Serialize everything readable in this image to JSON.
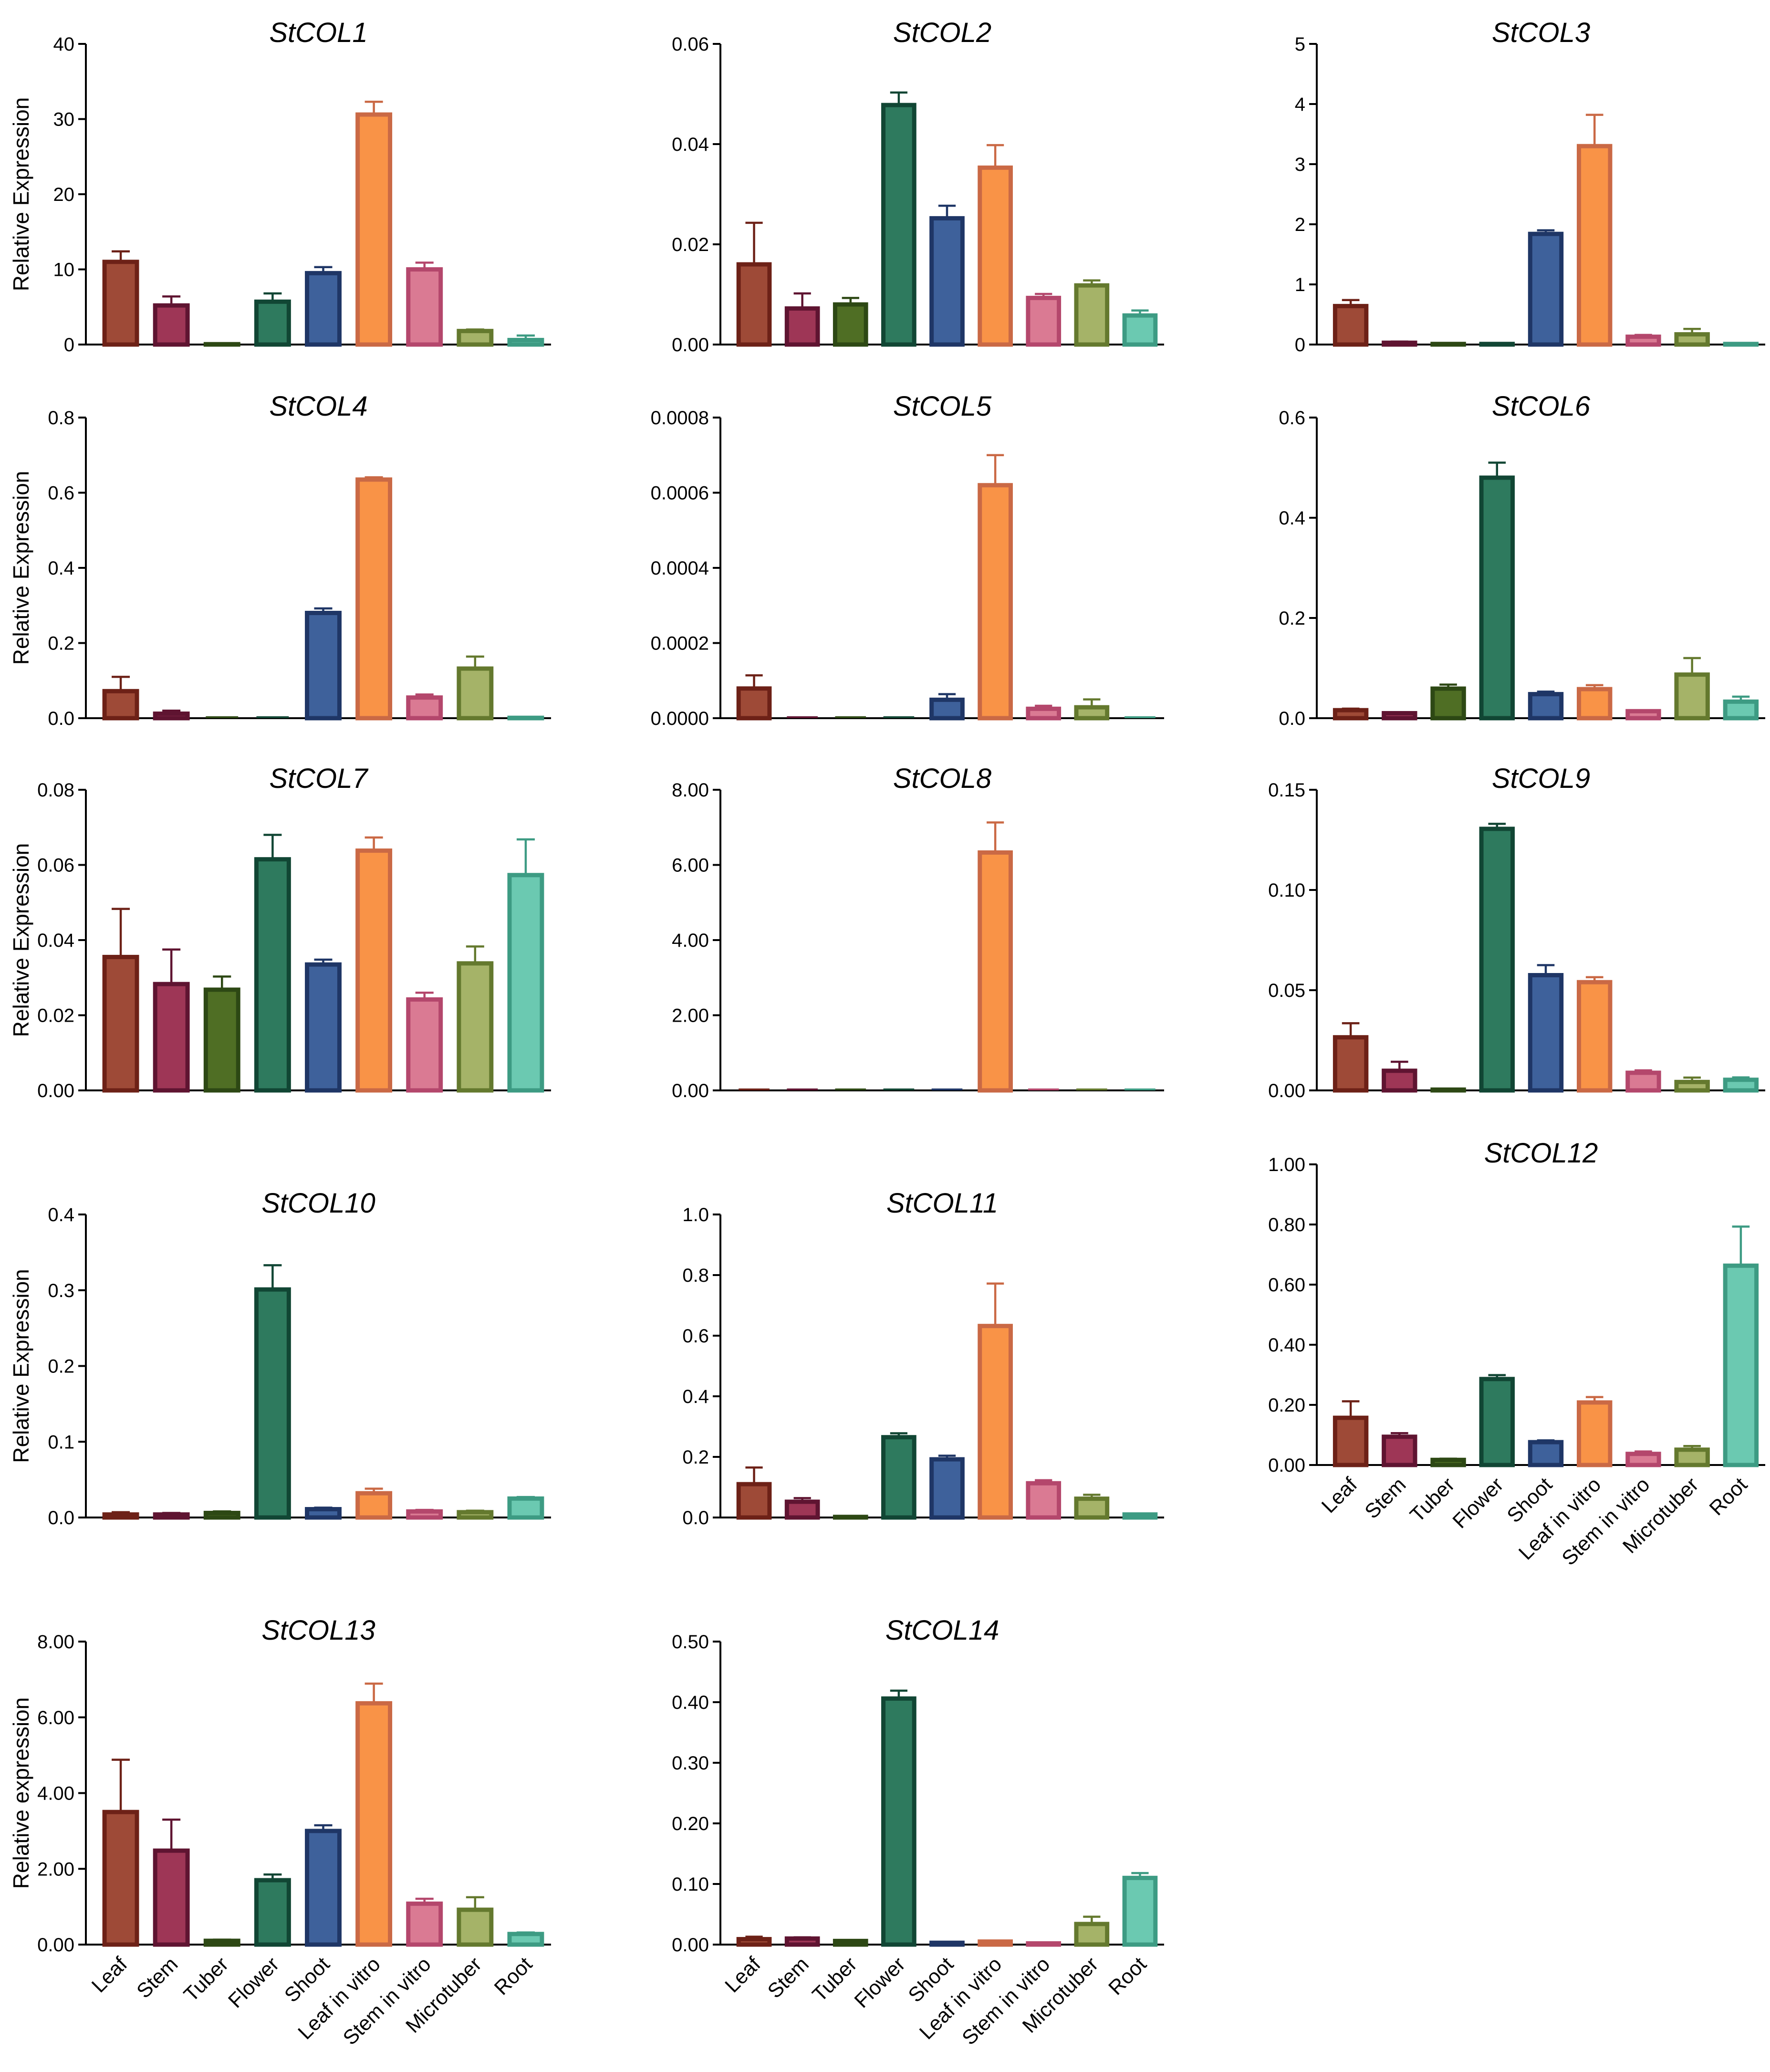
{
  "chart_data": [
    {
      "type": "bar",
      "title": "StCOL1",
      "ylabel": "Relative Expression",
      "ylim": [
        0,
        40
      ],
      "yticks": [
        "0",
        "10",
        "20",
        "30",
        "40"
      ],
      "categories": [
        "Leaf",
        "Stem",
        "Tuber",
        "Flower",
        "Shoot",
        "Leaf in vitro",
        "Stem in vitro",
        "Microtuber",
        "Root"
      ],
      "values": [
        11,
        5.2,
        0.05,
        5.7,
        9.5,
        30.6,
        10,
        1.8,
        0.6
      ],
      "errors": [
        1.4,
        1.2,
        0,
        1.1,
        0.8,
        1.7,
        0.9,
        0.2,
        0.6
      ]
    },
    {
      "type": "bar",
      "title": "StCOL2",
      "ylabel": "",
      "ylim": [
        0,
        0.06
      ],
      "yticks": [
        "0.00",
        "0.02",
        "0.04",
        "0.06"
      ],
      "categories": [
        "Leaf",
        "Stem",
        "Tuber",
        "Flower",
        "Shoot",
        "Leaf in vitro",
        "Stem in vitro",
        "Microtuber",
        "Root"
      ],
      "values": [
        0.016,
        0.0072,
        0.008,
        0.0478,
        0.0252,
        0.0353,
        0.0093,
        0.0118,
        0.0058
      ],
      "errors": [
        0.0083,
        0.003,
        0.0013,
        0.0025,
        0.0025,
        0.0045,
        0.0008,
        0.001,
        0.001
      ]
    },
    {
      "type": "bar",
      "title": "StCOL3",
      "ylabel": "",
      "ylim": [
        0,
        5
      ],
      "yticks": [
        "0",
        "1",
        "2",
        "3",
        "4",
        "5"
      ],
      "categories": [
        "Leaf",
        "Stem",
        "Tuber",
        "Flower",
        "Shoot",
        "Leaf in vitro",
        "Stem in vitro",
        "Microtuber",
        "Root"
      ],
      "values": [
        0.64,
        0.03,
        0.01,
        0.01,
        1.84,
        3.3,
        0.13,
        0.17,
        0.01
      ],
      "errors": [
        0.1,
        0.02,
        0,
        0,
        0.06,
        0.52,
        0.03,
        0.09,
        0
      ]
    },
    {
      "type": "bar",
      "title": "StCOL4",
      "ylabel": "Relative Expression",
      "ylim": [
        0,
        0.8
      ],
      "yticks": [
        "0.0",
        "0.2",
        "0.4",
        "0.6",
        "0.8"
      ],
      "categories": [
        "Leaf",
        "Stem",
        "Tuber",
        "Flower",
        "Shoot",
        "Leaf in vitro",
        "Stem in vitro",
        "Microtuber",
        "Root"
      ],
      "values": [
        0.072,
        0.012,
        0,
        0,
        0.28,
        0.635,
        0.055,
        0.132,
        0.001
      ],
      "errors": [
        0.038,
        0.008,
        0,
        0,
        0.012,
        0.006,
        0.008,
        0.032,
        0
      ]
    },
    {
      "type": "bar",
      "title": "StCOL5",
      "ylabel": "",
      "ylim": [
        0,
        0.0008
      ],
      "yticks": [
        "0.0000",
        "0.0002",
        "0.0004",
        "0.0006",
        "0.0008"
      ],
      "categories": [
        "Leaf",
        "Stem",
        "Tuber",
        "Flower",
        "Shoot",
        "Leaf in vitro",
        "Stem in vitro",
        "Microtuber",
        "Root"
      ],
      "values": [
        7.9e-05,
        0,
        0,
        0,
        4.9e-05,
        0.00062,
        2.5e-05,
        2.9e-05,
        0
      ],
      "errors": [
        3.5e-05,
        0,
        0,
        0,
        1.5e-05,
        8e-05,
        8e-06,
        2.1e-05,
        0
      ]
    },
    {
      "type": "bar",
      "title": "StCOL6",
      "ylabel": "",
      "ylim": [
        0,
        0.6
      ],
      "yticks": [
        "0.0",
        "0.2",
        "0.4",
        "0.6"
      ],
      "categories": [
        "Leaf",
        "Stem",
        "Tuber",
        "Flower",
        "Shoot",
        "Leaf in vitro",
        "Stem in vitro",
        "Microtuber",
        "Root"
      ],
      "values": [
        0.016,
        0.01,
        0.059,
        0.48,
        0.048,
        0.058,
        0.014,
        0.087,
        0.033
      ],
      "errors": [
        0.003,
        0.002,
        0.008,
        0.03,
        0.005,
        0.008,
        0.002,
        0.033,
        0.01
      ]
    },
    {
      "type": "bar",
      "title": "StCOL7",
      "ylabel": "Relative Expression",
      "ylim": [
        0,
        0.08
      ],
      "yticks": [
        "0.00",
        "0.02",
        "0.04",
        "0.06",
        "0.08"
      ],
      "categories": [
        "Leaf",
        "Stem",
        "Tuber",
        "Flower",
        "Shoot",
        "Leaf in vitro",
        "Stem in vitro",
        "Microtuber",
        "Root"
      ],
      "values": [
        0.0355,
        0.0283,
        0.0268,
        0.0615,
        0.0335,
        0.0638,
        0.0242,
        0.0338,
        0.0573
      ],
      "errors": [
        0.0128,
        0.0092,
        0.0035,
        0.0065,
        0.0013,
        0.0035,
        0.0018,
        0.0045,
        0.0095
      ]
    },
    {
      "type": "bar",
      "title": "StCOL8",
      "ylabel": "",
      "ylim": [
        0,
        8
      ],
      "yticks": [
        "0.00",
        "2.00",
        "4.00",
        "6.00",
        "8.00"
      ],
      "categories": [
        "Leaf",
        "Stem",
        "Tuber",
        "Flower",
        "Shoot",
        "Leaf in vitro",
        "Stem in vitro",
        "Microtuber",
        "Root"
      ],
      "values": [
        0,
        0,
        0,
        0,
        0,
        6.33,
        0,
        0,
        0
      ],
      "errors": [
        0,
        0,
        0,
        0,
        0,
        0.8,
        0,
        0,
        0
      ]
    },
    {
      "type": "bar",
      "title": "StCOL9",
      "ylabel": "",
      "ylim": [
        0,
        0.15
      ],
      "yticks": [
        "0.00",
        "0.05",
        "0.10",
        "0.15"
      ],
      "categories": [
        "Leaf",
        "Stem",
        "Tuber",
        "Flower",
        "Shoot",
        "Leaf in vitro",
        "Stem in vitro",
        "Microtuber",
        "Root"
      ],
      "values": [
        0.0265,
        0.0098,
        0.0004,
        0.1305,
        0.0575,
        0.054,
        0.0088,
        0.0042,
        0.0053
      ],
      "errors": [
        0.007,
        0.0045,
        0,
        0.0025,
        0.005,
        0.0025,
        0.0012,
        0.0022,
        0.0012
      ]
    },
    {
      "type": "bar",
      "title": "StCOL10",
      "ylabel": "Relative Expression",
      "ylim": [
        0,
        0.4
      ],
      "yticks": [
        "0.0",
        "0.1",
        "0.2",
        "0.3",
        "0.4"
      ],
      "categories": [
        "Leaf",
        "Stem",
        "Tuber",
        "Flower",
        "Shoot",
        "Leaf in vitro",
        "Stem in vitro",
        "Microtuber",
        "Root"
      ],
      "values": [
        0.004,
        0.004,
        0.006,
        0.301,
        0.011,
        0.032,
        0.008,
        0.007,
        0.025
      ],
      "errors": [
        0.003,
        0.002,
        0.002,
        0.032,
        0.002,
        0.006,
        0.002,
        0.002,
        0.002
      ]
    },
    {
      "type": "bar",
      "title": "StCOL11",
      "ylabel": "",
      "ylim": [
        0,
        1.0
      ],
      "yticks": [
        "0.0",
        "0.2",
        "0.4",
        "0.6",
        "0.8",
        "1.0"
      ],
      "categories": [
        "Leaf",
        "Stem",
        "Tuber",
        "Flower",
        "Shoot",
        "Leaf in vitro",
        "Stem in vitro",
        "Microtuber",
        "Root"
      ],
      "values": [
        0.11,
        0.052,
        0.002,
        0.265,
        0.192,
        0.632,
        0.113,
        0.062,
        0.01
      ],
      "errors": [
        0.055,
        0.012,
        0,
        0.013,
        0.012,
        0.14,
        0.01,
        0.013,
        0.002
      ]
    },
    {
      "type": "bar",
      "title": "StCOL12",
      "ylabel": "",
      "ylim": [
        0,
        1.0
      ],
      "yticks": [
        "0.00",
        "0.20",
        "0.40",
        "0.60",
        "0.80",
        "1.00"
      ],
      "categories": [
        "Leaf",
        "Stem",
        "Tuber",
        "Flower",
        "Shoot",
        "Leaf in vitro",
        "Stem in vitro",
        "Microtuber",
        "Root"
      ],
      "values": [
        0.157,
        0.094,
        0.017,
        0.286,
        0.076,
        0.208,
        0.037,
        0.051,
        0.663
      ],
      "errors": [
        0.055,
        0.012,
        0.004,
        0.013,
        0.006,
        0.018,
        0.008,
        0.012,
        0.13
      ]
    },
    {
      "type": "bar",
      "title": "StCOL13",
      "ylabel": "Relative expression",
      "ylim": [
        0,
        8
      ],
      "yticks": [
        "0.00",
        "2.00",
        "4.00",
        "6.00",
        "8.00"
      ],
      "categories": [
        "Leaf",
        "Stem",
        "Tuber",
        "Flower",
        "Shoot",
        "Leaf in vitro",
        "Stem in vitro",
        "Microtuber",
        "Root"
      ],
      "values": [
        3.5,
        2.48,
        0.1,
        1.7,
        3.0,
        6.37,
        1.08,
        0.92,
        0.28
      ],
      "errors": [
        1.38,
        0.82,
        0.03,
        0.15,
        0.15,
        0.52,
        0.13,
        0.33,
        0.04
      ]
    },
    {
      "type": "bar",
      "title": "StCOL14",
      "ylabel": "",
      "ylim": [
        0,
        0.5
      ],
      "yticks": [
        "0.00",
        "0.10",
        "0.20",
        "0.30",
        "0.40",
        "0.50"
      ],
      "categories": [
        "Leaf",
        "Stem",
        "Tuber",
        "Flower",
        "Shoot",
        "Leaf in vitro",
        "Stem in vitro",
        "Microtuber",
        "Root"
      ],
      "values": [
        0.009,
        0.01,
        0.006,
        0.406,
        0.003,
        0.005,
        0.002,
        0.034,
        0.11
      ],
      "errors": [
        0.004,
        0.002,
        0.001,
        0.013,
        0.001,
        0.001,
        0.001,
        0.012,
        0.008
      ]
    }
  ],
  "palette": {
    "fill": [
      "#9e4a37",
      "#9e3656",
      "#4f6e24",
      "#2e7a5e",
      "#3e619b",
      "#f99347",
      "#da7a93",
      "#a5b368",
      "#6bc9b1"
    ],
    "stroke": [
      "#6d2117",
      "#5f1431",
      "#2d4814",
      "#114634",
      "#1f3666",
      "#ca6945",
      "#b4476c",
      "#64792e",
      "#3d9b83"
    ]
  }
}
